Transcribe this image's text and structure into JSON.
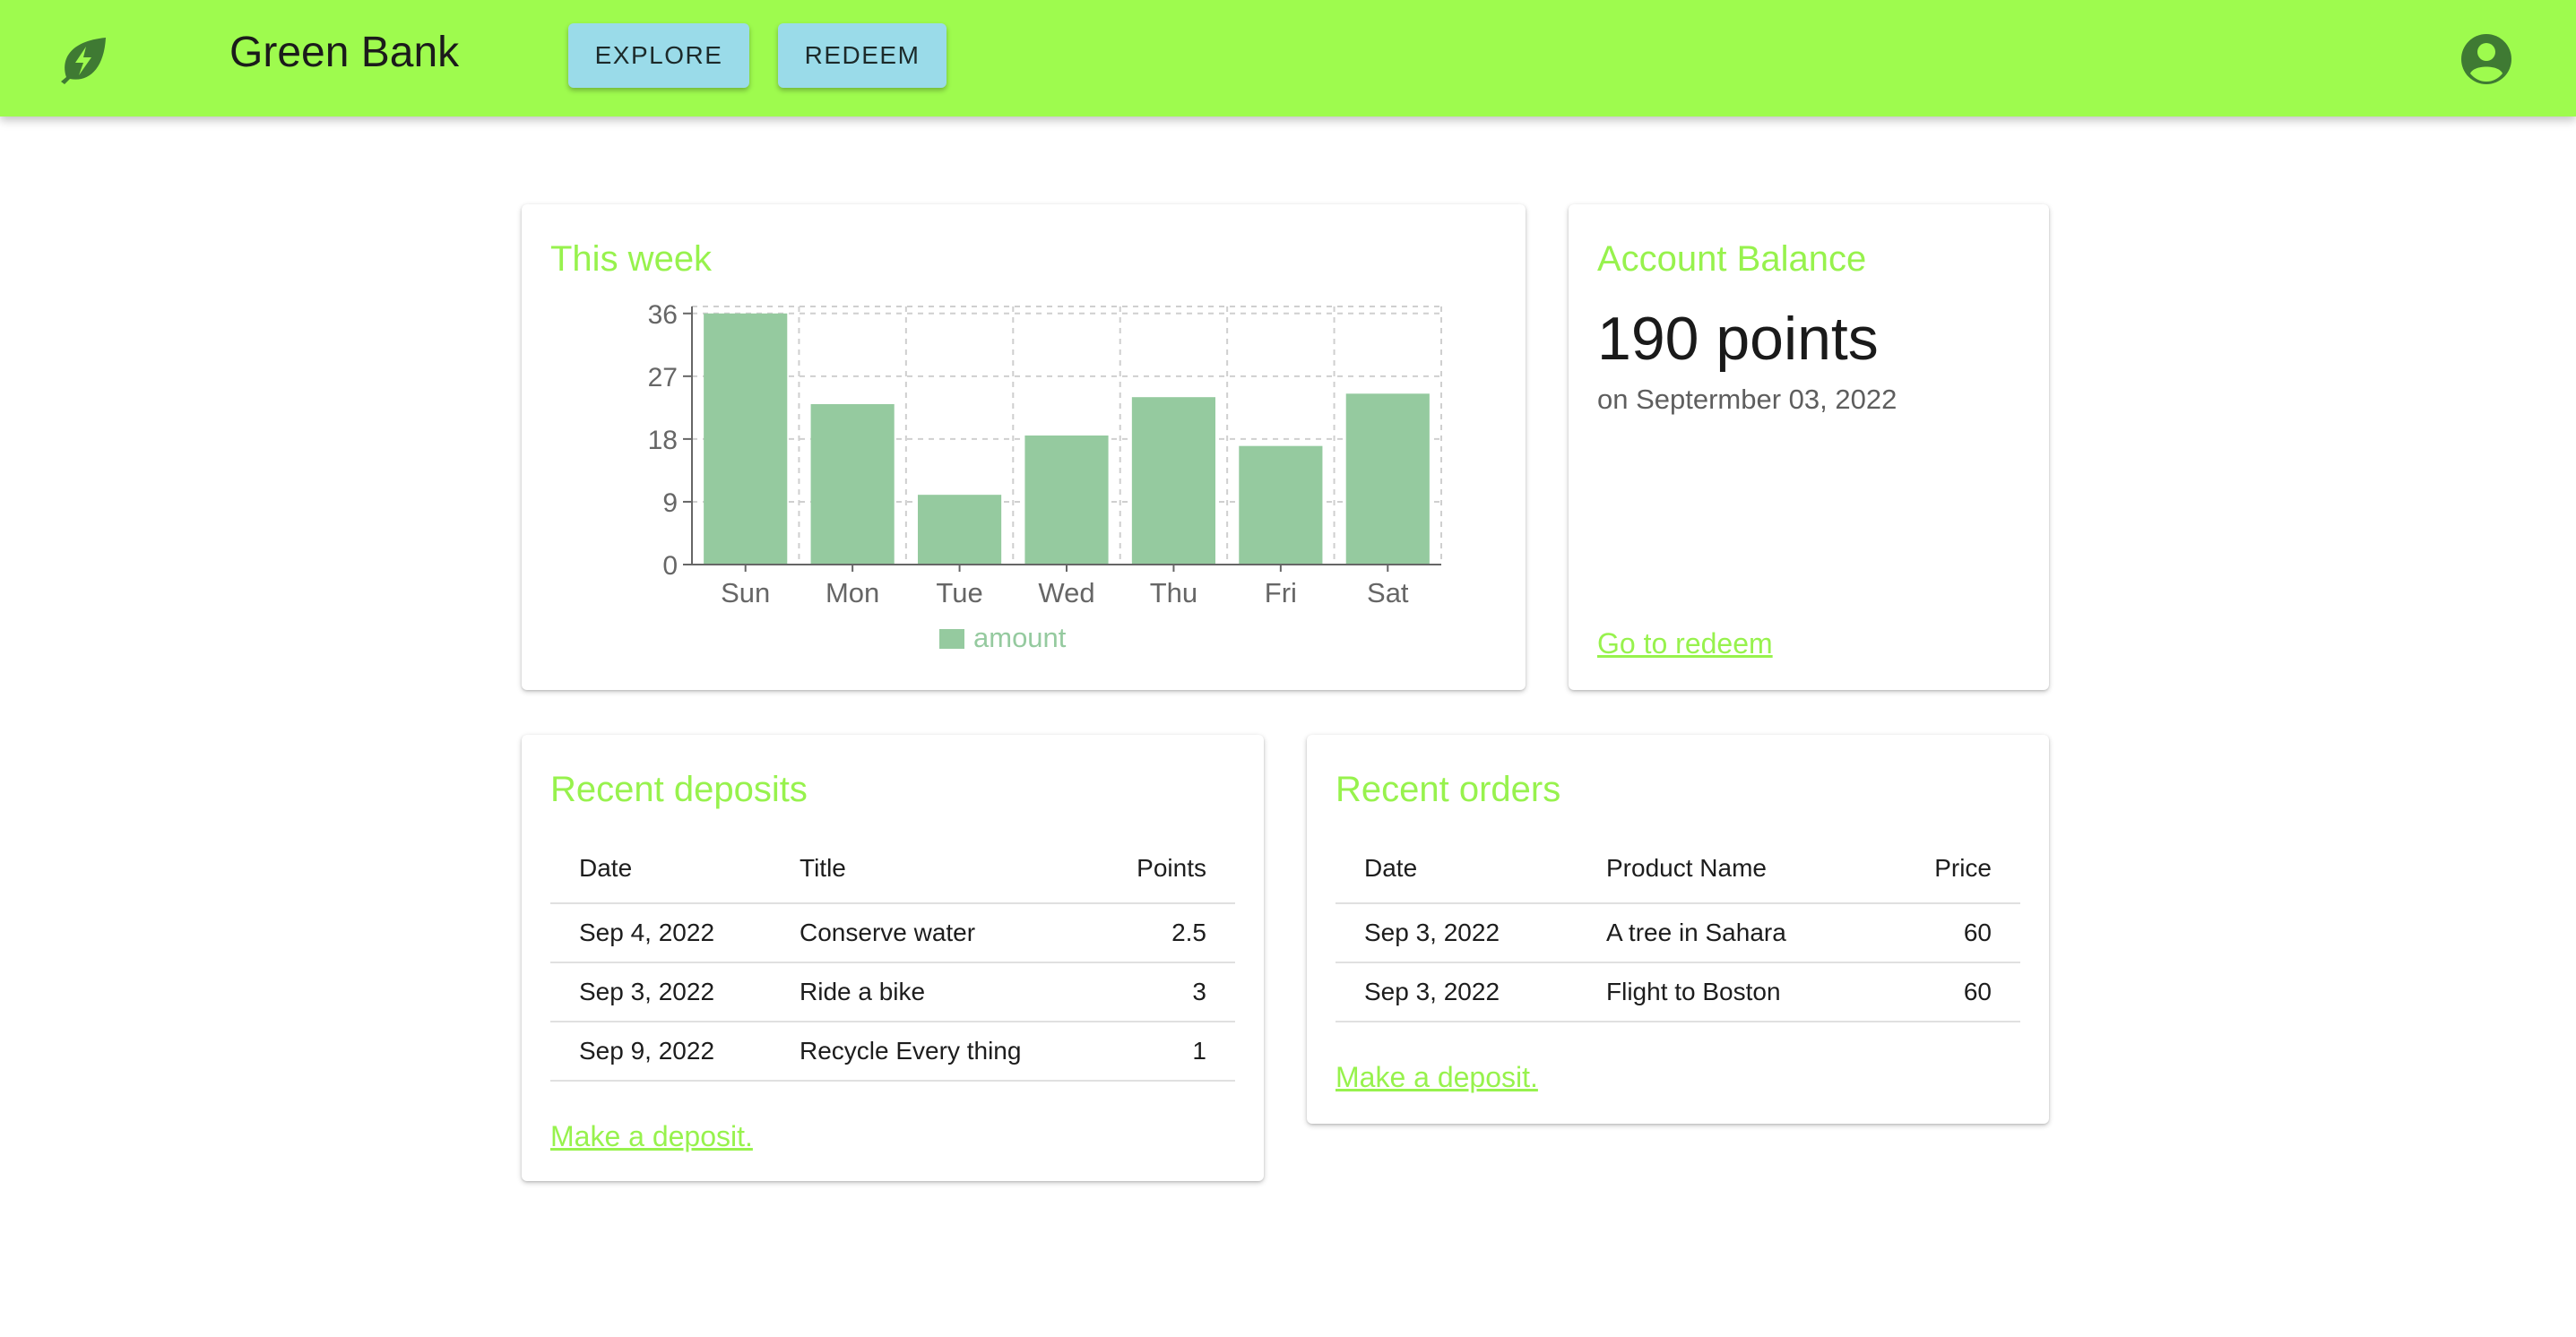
{
  "header": {
    "brand": "Green Bank",
    "nav": [
      {
        "label": "EXPLORE"
      },
      {
        "label": "REDEEM"
      }
    ],
    "icons": {
      "logo": "leaf-bolt-icon",
      "account": "account-circle-icon"
    },
    "colors": {
      "appbar": "#9efb4e",
      "button": "#9adbe9"
    }
  },
  "week": {
    "title": "This week",
    "chart_data": {
      "type": "bar",
      "categories": [
        "Sun",
        "Mon",
        "Tue",
        "Wed",
        "Thu",
        "Fri",
        "Sat"
      ],
      "series": [
        {
          "name": "amount",
          "values": [
            36,
            23,
            10,
            18.5,
            24,
            17,
            24.5
          ]
        }
      ],
      "yticks": [
        0,
        9,
        18,
        27,
        36
      ],
      "ylim": [
        0,
        37
      ],
      "grid": true,
      "legend": "bottom",
      "color": "#95ca9f"
    }
  },
  "balance": {
    "title": "Account Balance",
    "value": "190 points",
    "date": "on Septermber 03, 2022",
    "link": "Go to redeem"
  },
  "deposits": {
    "title": "Recent deposits",
    "columns": [
      "Date",
      "Title",
      "Points"
    ],
    "rows": [
      {
        "date": "Sep 4, 2022",
        "title": "Conserve water",
        "points": "2.5"
      },
      {
        "date": "Sep 3, 2022",
        "title": "Ride a bike",
        "points": "3"
      },
      {
        "date": "Sep 9, 2022",
        "title": "Recycle Every thing",
        "points": "1"
      }
    ],
    "link": "Make a deposit."
  },
  "orders": {
    "title": "Recent orders",
    "columns": [
      "Date",
      "Product Name",
      "Price"
    ],
    "rows": [
      {
        "date": "Sep 3, 2022",
        "product": "A tree in Sahara",
        "price": "60"
      },
      {
        "date": "Sep 3, 2022",
        "product": "Flight to Boston",
        "price": "60"
      }
    ],
    "link": "Make a deposit."
  }
}
